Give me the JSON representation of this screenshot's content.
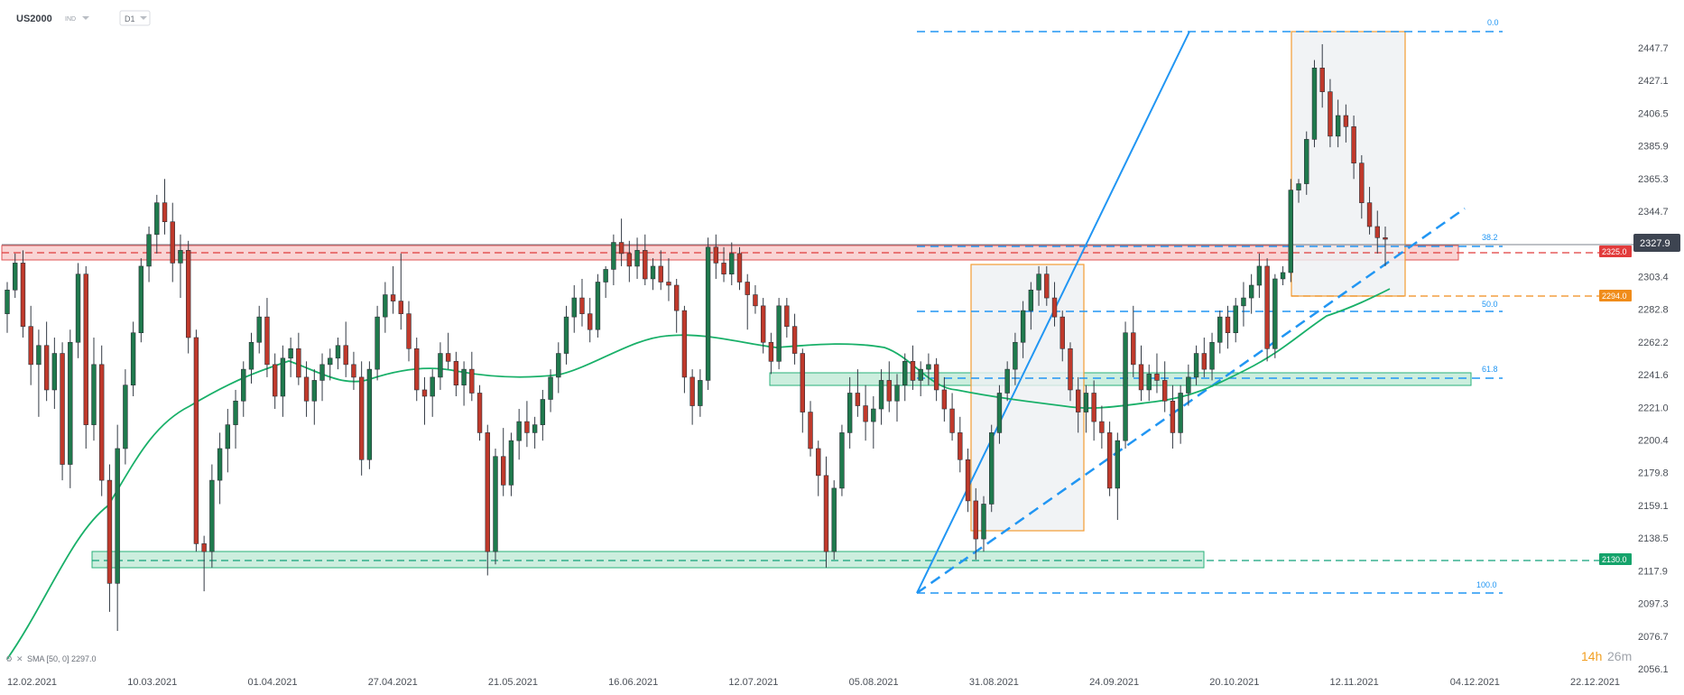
{
  "header": {
    "symbol": "US2000",
    "symbol_tag": "IND",
    "timeframe": "D1"
  },
  "chart_data": {
    "type": "candlestick",
    "instrument": "US2000",
    "timeframe": "D1",
    "y_ticks": [
      "2447.7",
      "2427.1",
      "2406.5",
      "2385.9",
      "2365.3",
      "2344.7",
      "2303.4",
      "2282.8",
      "2262.2",
      "2241.6",
      "2221.0",
      "2200.4",
      "2179.8",
      "2159.1",
      "2138.5",
      "2117.9",
      "2097.3",
      "2076.7",
      "2056.1"
    ],
    "x_ticks": [
      "12.02.2021",
      "10.03.2021",
      "01.04.2021",
      "27.04.2021",
      "21.05.2021",
      "16.06.2021",
      "12.07.2021",
      "05.08.2021",
      "31.08.2021",
      "24.09.2021",
      "20.10.2021",
      "12.11.2021",
      "04.12.2021",
      "22.12.2021"
    ],
    "ylim": [
      2056.1,
      2447.7
    ],
    "current_price": "2327.9",
    "indicator": {
      "label": "SMA [50, 0] 2297.0"
    },
    "price_badges": [
      {
        "label": "2325.0",
        "color": "#e23b3b"
      },
      {
        "label": "2294.0",
        "color": "#f08c1a"
      },
      {
        "label": "2130.0",
        "color": "#15a36b"
      }
    ],
    "fibonacci": {
      "levels": [
        "0.0",
        "38.2",
        "50.0",
        "61.8",
        "100.0"
      ]
    },
    "countdown": {
      "hours": "14h",
      "minutes": "26m"
    },
    "candles_ohlc": [
      [
        2280,
        2300,
        2268,
        2295
      ],
      [
        2295,
        2318,
        2290,
        2312
      ],
      [
        2312,
        2320,
        2265,
        2272
      ],
      [
        2272,
        2285,
        2235,
        2248
      ],
      [
        2248,
        2270,
        2215,
        2260
      ],
      [
        2260,
        2275,
        2225,
        2232
      ],
      [
        2232,
        2265,
        2220,
        2255
      ],
      [
        2255,
        2262,
        2175,
        2185
      ],
      [
        2185,
        2270,
        2170,
        2262
      ],
      [
        2262,
        2312,
        2252,
        2305
      ],
      [
        2305,
        2310,
        2195,
        2210
      ],
      [
        2210,
        2265,
        2200,
        2248
      ],
      [
        2248,
        2260,
        2165,
        2175
      ],
      [
        2175,
        2185,
        2092,
        2110
      ],
      [
        2110,
        2210,
        2080,
        2195
      ],
      [
        2195,
        2245,
        2185,
        2235
      ],
      [
        2235,
        2275,
        2228,
        2268
      ],
      [
        2268,
        2315,
        2262,
        2310
      ],
      [
        2310,
        2335,
        2300,
        2330
      ],
      [
        2330,
        2355,
        2318,
        2350
      ],
      [
        2350,
        2365,
        2330,
        2338
      ],
      [
        2338,
        2350,
        2300,
        2312
      ],
      [
        2312,
        2330,
        2290,
        2320
      ],
      [
        2320,
        2326,
        2255,
        2265
      ],
      [
        2265,
        2270,
        2130,
        2135
      ],
      [
        2135,
        2140,
        2105,
        2130
      ],
      [
        2130,
        2185,
        2120,
        2175
      ],
      [
        2175,
        2205,
        2160,
        2195
      ],
      [
        2195,
        2220,
        2180,
        2210
      ],
      [
        2210,
        2232,
        2195,
        2225
      ],
      [
        2225,
        2250,
        2215,
        2245
      ],
      [
        2245,
        2268,
        2236,
        2262
      ],
      [
        2262,
        2285,
        2255,
        2278
      ],
      [
        2278,
        2290,
        2240,
        2248
      ],
      [
        2248,
        2255,
        2220,
        2228
      ],
      [
        2228,
        2260,
        2215,
        2252
      ],
      [
        2252,
        2265,
        2240,
        2258
      ],
      [
        2258,
        2268,
        2235,
        2240
      ],
      [
        2240,
        2250,
        2215,
        2225
      ],
      [
        2225,
        2245,
        2210,
        2238
      ],
      [
        2238,
        2255,
        2225,
        2248
      ],
      [
        2248,
        2258,
        2238,
        2252
      ],
      [
        2252,
        2265,
        2245,
        2260
      ],
      [
        2260,
        2275,
        2240,
        2248
      ],
      [
        2248,
        2256,
        2232,
        2240
      ],
      [
        2240,
        2250,
        2178,
        2188
      ],
      [
        2188,
        2250,
        2182,
        2245
      ],
      [
        2245,
        2285,
        2238,
        2278
      ],
      [
        2278,
        2300,
        2268,
        2292
      ],
      [
        2292,
        2310,
        2280,
        2288
      ],
      [
        2288,
        2318,
        2270,
        2280
      ],
      [
        2280,
        2288,
        2250,
        2258
      ],
      [
        2258,
        2265,
        2225,
        2232
      ],
      [
        2232,
        2240,
        2210,
        2228
      ],
      [
        2228,
        2245,
        2215,
        2240
      ],
      [
        2240,
        2262,
        2232,
        2255
      ],
      [
        2255,
        2268,
        2245,
        2250
      ],
      [
        2250,
        2256,
        2228,
        2235
      ],
      [
        2235,
        2250,
        2222,
        2245
      ],
      [
        2245,
        2256,
        2225,
        2230
      ],
      [
        2230,
        2235,
        2200,
        2205
      ],
      [
        2205,
        2210,
        2115,
        2130
      ],
      [
        2130,
        2195,
        2122,
        2190
      ],
      [
        2190,
        2208,
        2165,
        2172
      ],
      [
        2172,
        2205,
        2165,
        2200
      ],
      [
        2200,
        2220,
        2188,
        2212
      ],
      [
        2212,
        2225,
        2196,
        2205
      ],
      [
        2205,
        2215,
        2195,
        2210
      ],
      [
        2210,
        2232,
        2200,
        2226
      ],
      [
        2226,
        2245,
        2218,
        2240
      ],
      [
        2240,
        2262,
        2230,
        2255
      ],
      [
        2255,
        2285,
        2248,
        2278
      ],
      [
        2278,
        2298,
        2268,
        2290
      ],
      [
        2290,
        2302,
        2272,
        2280
      ],
      [
        2280,
        2290,
        2262,
        2270
      ],
      [
        2270,
        2305,
        2265,
        2300
      ],
      [
        2300,
        2310,
        2290,
        2308
      ],
      [
        2308,
        2330,
        2298,
        2325
      ],
      [
        2325,
        2340,
        2310,
        2318
      ],
      [
        2318,
        2326,
        2300,
        2310
      ],
      [
        2310,
        2328,
        2302,
        2320
      ],
      [
        2320,
        2330,
        2298,
        2302
      ],
      [
        2302,
        2315,
        2295,
        2310
      ],
      [
        2310,
        2320,
        2295,
        2300
      ],
      [
        2300,
        2315,
        2288,
        2298
      ],
      [
        2298,
        2302,
        2268,
        2282
      ],
      [
        2282,
        2285,
        2230,
        2240
      ],
      [
        2240,
        2245,
        2210,
        2222
      ],
      [
        2222,
        2245,
        2215,
        2238
      ],
      [
        2238,
        2328,
        2232,
        2322
      ],
      [
        2322,
        2330,
        2302,
        2312
      ],
      [
        2312,
        2322,
        2300,
        2305
      ],
      [
        2305,
        2325,
        2298,
        2318
      ],
      [
        2318,
        2322,
        2295,
        2300
      ],
      [
        2300,
        2305,
        2270,
        2292
      ],
      [
        2292,
        2298,
        2280,
        2285
      ],
      [
        2285,
        2290,
        2255,
        2262
      ],
      [
        2262,
        2268,
        2242,
        2250
      ],
      [
        2250,
        2290,
        2245,
        2285
      ],
      [
        2285,
        2290,
        2265,
        2272
      ],
      [
        2272,
        2280,
        2248,
        2255
      ],
      [
        2255,
        2258,
        2205,
        2218
      ],
      [
        2218,
        2225,
        2190,
        2195
      ],
      [
        2195,
        2200,
        2165,
        2178
      ],
      [
        2178,
        2190,
        2120,
        2130
      ],
      [
        2130,
        2175,
        2125,
        2170
      ],
      [
        2170,
        2210,
        2165,
        2205
      ],
      [
        2205,
        2240,
        2195,
        2230
      ],
      [
        2230,
        2245,
        2215,
        2222
      ],
      [
        2222,
        2235,
        2200,
        2212
      ],
      [
        2212,
        2228,
        2195,
        2220
      ],
      [
        2220,
        2245,
        2210,
        2238
      ],
      [
        2238,
        2250,
        2218,
        2225
      ],
      [
        2225,
        2242,
        2212,
        2235
      ],
      [
        2235,
        2255,
        2225,
        2250
      ],
      [
        2250,
        2260,
        2232,
        2238
      ],
      [
        2238,
        2250,
        2228,
        2245
      ],
      [
        2245,
        2255,
        2235,
        2248
      ],
      [
        2248,
        2252,
        2225,
        2232
      ],
      [
        2232,
        2240,
        2212,
        2220
      ],
      [
        2220,
        2230,
        2200,
        2205
      ],
      [
        2205,
        2215,
        2180,
        2188
      ],
      [
        2188,
        2195,
        2155,
        2162
      ],
      [
        2162,
        2170,
        2125,
        2138
      ],
      [
        2138,
        2165,
        2130,
        2160
      ],
      [
        2160,
        2210,
        2155,
        2205
      ],
      [
        2205,
        2235,
        2198,
        2230
      ],
      [
        2230,
        2250,
        2225,
        2245
      ],
      [
        2245,
        2268,
        2235,
        2262
      ],
      [
        2262,
        2288,
        2252,
        2282
      ],
      [
        2282,
        2300,
        2270,
        2295
      ],
      [
        2295,
        2310,
        2285,
        2305
      ],
      [
        2305,
        2310,
        2285,
        2290
      ],
      [
        2290,
        2300,
        2272,
        2278
      ],
      [
        2278,
        2282,
        2250,
        2258
      ],
      [
        2258,
        2262,
        2225,
        2232
      ],
      [
        2232,
        2240,
        2205,
        2218
      ],
      [
        2218,
        2235,
        2205,
        2230
      ],
      [
        2230,
        2238,
        2200,
        2212
      ],
      [
        2212,
        2222,
        2195,
        2205
      ],
      [
        2205,
        2212,
        2165,
        2170
      ],
      [
        2170,
        2205,
        2150,
        2200
      ],
      [
        2200,
        2275,
        2195,
        2268
      ],
      [
        2268,
        2285,
        2240,
        2248
      ],
      [
        2248,
        2260,
        2225,
        2232
      ],
      [
        2232,
        2248,
        2225,
        2242
      ],
      [
        2242,
        2255,
        2230,
        2238
      ],
      [
        2238,
        2250,
        2218,
        2225
      ],
      [
        2225,
        2235,
        2195,
        2205
      ],
      [
        2205,
        2235,
        2198,
        2230
      ],
      [
        2230,
        2248,
        2222,
        2240
      ],
      [
        2240,
        2260,
        2235,
        2255
      ],
      [
        2255,
        2265,
        2240,
        2245
      ],
      [
        2245,
        2268,
        2238,
        2262
      ],
      [
        2262,
        2282,
        2255,
        2278
      ],
      [
        2278,
        2285,
        2258,
        2268
      ],
      [
        2268,
        2290,
        2262,
        2285
      ],
      [
        2285,
        2300,
        2272,
        2290
      ],
      [
        2290,
        2305,
        2280,
        2298
      ],
      [
        2298,
        2318,
        2290,
        2310
      ],
      [
        2310,
        2315,
        2250,
        2258
      ],
      [
        2258,
        2305,
        2252,
        2302
      ],
      [
        2302,
        2310,
        2298,
        2306
      ],
      [
        2306,
        2365,
        2300,
        2358
      ],
      [
        2358,
        2365,
        2350,
        2362
      ],
      [
        2362,
        2395,
        2355,
        2390
      ],
      [
        2390,
        2440,
        2385,
        2435
      ],
      [
        2435,
        2450,
        2410,
        2420
      ],
      [
        2420,
        2428,
        2385,
        2392
      ],
      [
        2392,
        2415,
        2385,
        2405
      ],
      [
        2405,
        2412,
        2388,
        2398
      ],
      [
        2398,
        2405,
        2365,
        2375
      ],
      [
        2375,
        2380,
        2340,
        2350
      ],
      [
        2350,
        2360,
        2330,
        2335
      ],
      [
        2335,
        2345,
        2318,
        2328
      ],
      [
        2328,
        2335,
        2310,
        2327
      ]
    ]
  }
}
